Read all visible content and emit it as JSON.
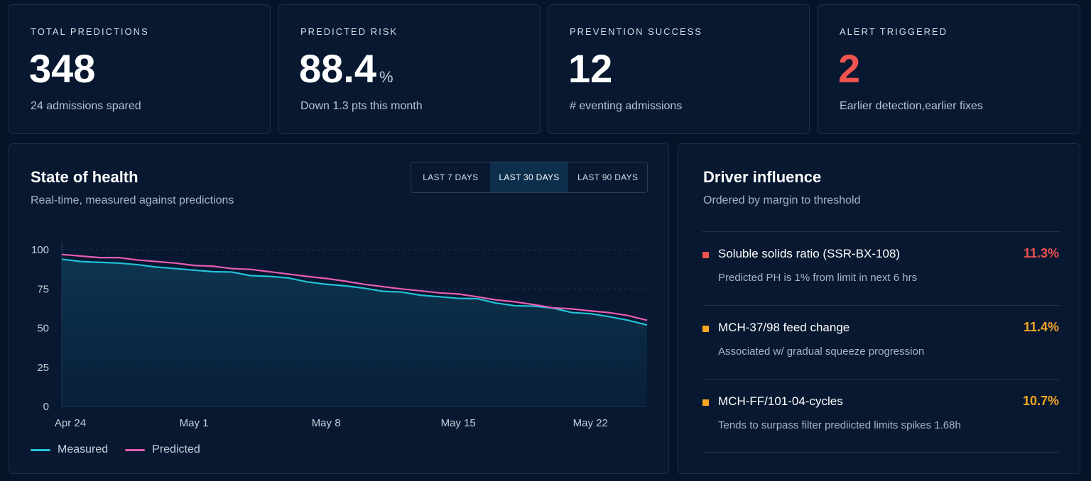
{
  "kpis": [
    {
      "label": "TOTAL PREDICTIONS",
      "value": "348",
      "unit": "",
      "sub": "24 admissions spared"
    },
    {
      "label": "PREDICTED RISK",
      "value": "88.4",
      "unit": "%",
      "sub": "Down 1.3 pts this month"
    },
    {
      "label": "PREVENTION SUCCESS",
      "value": "12",
      "unit": "",
      "sub": "# eventing admissions"
    },
    {
      "label": "ALERT TRIGGERED",
      "value": "2",
      "unit": "",
      "sub": "Earlier detection,earlier fixes"
    }
  ],
  "health": {
    "title": "State of health",
    "subtitle": "Real-time, measured against predictions",
    "ranges": [
      "LAST 7 DAYS",
      "LAST 30 DAYS",
      "LAST 90 DAYS"
    ],
    "active_range": "LAST 30 DAYS"
  },
  "chart_data": {
    "type": "area",
    "x": [
      "Apr 24",
      "Apr 25",
      "Apr 26",
      "Apr 27",
      "Apr 28",
      "Apr 29",
      "Apr 30",
      "May 1",
      "May 2",
      "May 3",
      "May 4",
      "May 5",
      "May 6",
      "May 7",
      "May 8",
      "May 9",
      "May 10",
      "May 11",
      "May 12",
      "May 13",
      "May 14",
      "May 15",
      "May 16",
      "May 17",
      "May 18",
      "May 19",
      "May 20",
      "May 21",
      "May 22",
      "May 23",
      "May 24",
      "May 25"
    ],
    "x_ticks": [
      "Apr 24",
      "May 1",
      "May 8",
      "May 15",
      "May 22"
    ],
    "y_ticks": [
      0,
      25,
      50,
      75,
      100
    ],
    "ylim": [
      0,
      105
    ],
    "grid": true,
    "series": [
      {
        "name": "Measured",
        "color": "#22c3d9",
        "values": [
          94,
          92.5,
          92,
          91.5,
          90.5,
          89,
          88,
          87,
          86,
          85.8,
          83.5,
          83,
          82,
          79.5,
          78,
          77,
          75.5,
          73.5,
          73,
          71,
          70,
          69,
          68.8,
          66,
          64.3,
          64,
          62.8,
          60,
          59.2,
          57.3,
          55,
          52
        ]
      },
      {
        "name": "Predicted",
        "color": "#e85db3",
        "values": [
          97,
          96,
          95,
          95,
          93.5,
          92.5,
          91.5,
          90,
          89.5,
          88,
          87.5,
          86,
          84.5,
          83,
          81.7,
          80,
          78,
          76.5,
          75,
          73.8,
          72.5,
          71.8,
          70,
          68,
          66.8,
          65,
          63,
          62.3,
          61,
          59.9,
          58,
          55
        ]
      }
    ],
    "legend": "bottom-left"
  },
  "drivers": {
    "title": "Driver influence",
    "subtitle": "Ordered by margin to threshold",
    "items": [
      {
        "name": "Soluble solids ratio (SSR-BX-108)",
        "desc": "Predicted PH is 1% from limit in next 6 hrs",
        "pct": "11.3%",
        "color": "#ef5350"
      },
      {
        "name": "MCH-37/98 feed change",
        "desc": "Associated w/ gradual squeeze progression",
        "pct": "11.4%",
        "color": "#f5a623"
      },
      {
        "name": "MCH-FF/101-04-cycles",
        "desc": "Tends to surpass filter prediicted limits spikes 1.68h",
        "pct": "10.7%",
        "color": "#f5a623"
      }
    ]
  }
}
